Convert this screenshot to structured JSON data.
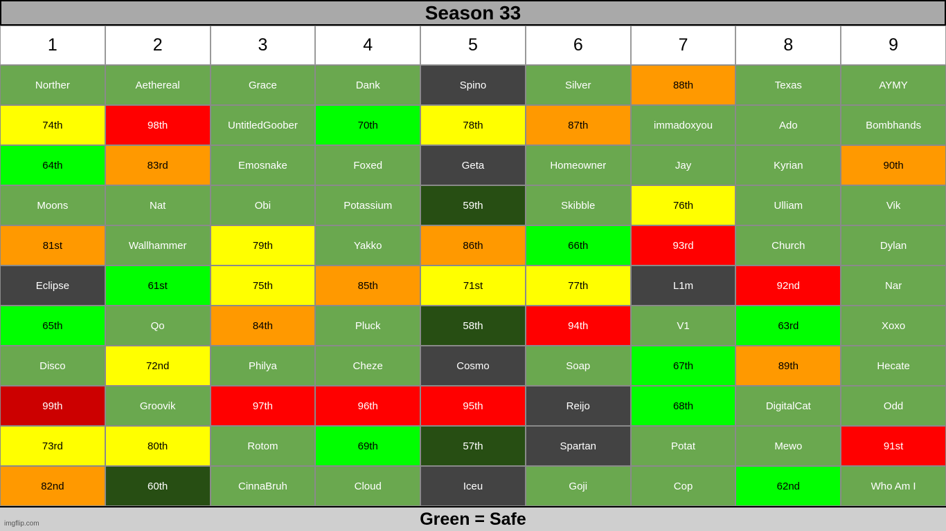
{
  "title": "Season 33",
  "footer": "Green = Safe",
  "watermark": "imgflip.com",
  "columns": [
    "1",
    "2",
    "3",
    "4",
    "5",
    "6",
    "7",
    "8",
    "9"
  ],
  "colors": {
    "G": {
      "bg": "#6aa84f",
      "fg": "#ffffff"
    },
    "D": {
      "bg": "#434343",
      "fg": "#ffffff"
    },
    "F": {
      "bg": "#274e13",
      "fg": "#ffffff"
    },
    "Y": {
      "bg": "#ffff00",
      "fg": "#000000"
    },
    "O": {
      "bg": "#ff9900",
      "fg": "#000000"
    },
    "R": {
      "bg": "#ff0000",
      "fg": "#ffffff"
    },
    "C": {
      "bg": "#cc0000",
      "fg": "#ffffff"
    },
    "L": {
      "bg": "#00ff00",
      "fg": "#000000"
    }
  },
  "rows": [
    [
      [
        "Norther",
        "G"
      ],
      [
        "Aethereal",
        "G"
      ],
      [
        "Grace",
        "G"
      ],
      [
        "Dank",
        "G"
      ],
      [
        "Spino",
        "D"
      ],
      [
        "Silver",
        "G"
      ],
      [
        "88th",
        "O"
      ],
      [
        "Texas",
        "G"
      ],
      [
        "AYMY",
        "G"
      ]
    ],
    [
      [
        "74th",
        "Y"
      ],
      [
        "98th",
        "R"
      ],
      [
        "UntitledGoober",
        "G"
      ],
      [
        "70th",
        "L"
      ],
      [
        "78th",
        "Y"
      ],
      [
        "87th",
        "O"
      ],
      [
        "immadoxyou",
        "G"
      ],
      [
        "Ado",
        "G"
      ],
      [
        "Bombhands",
        "G"
      ]
    ],
    [
      [
        "64th",
        "L"
      ],
      [
        "83rd",
        "O"
      ],
      [
        "Emosnake",
        "G"
      ],
      [
        "Foxed",
        "G"
      ],
      [
        "Geta",
        "D"
      ],
      [
        "Homeowner",
        "G"
      ],
      [
        "Jay",
        "G"
      ],
      [
        "Kyrian",
        "G"
      ],
      [
        "90th",
        "O"
      ]
    ],
    [
      [
        "Moons",
        "G"
      ],
      [
        "Nat",
        "G"
      ],
      [
        "Obi",
        "G"
      ],
      [
        "Potassium",
        "G"
      ],
      [
        "59th",
        "F"
      ],
      [
        "Skibble",
        "G"
      ],
      [
        "76th",
        "Y"
      ],
      [
        "Ulliam",
        "G"
      ],
      [
        "Vik",
        "G"
      ]
    ],
    [
      [
        "81st",
        "O"
      ],
      [
        "Wallhammer",
        "G"
      ],
      [
        "79th",
        "Y"
      ],
      [
        "Yakko",
        "G"
      ],
      [
        "86th",
        "O"
      ],
      [
        "66th",
        "L"
      ],
      [
        "93rd",
        "R"
      ],
      [
        "Church",
        "G"
      ],
      [
        "Dylan",
        "G"
      ]
    ],
    [
      [
        "Eclipse",
        "D"
      ],
      [
        "61st",
        "L"
      ],
      [
        "75th",
        "Y"
      ],
      [
        "85th",
        "O"
      ],
      [
        "71st",
        "Y"
      ],
      [
        "77th",
        "Y"
      ],
      [
        "L1m",
        "D"
      ],
      [
        "92nd",
        "R"
      ],
      [
        "Nar",
        "G"
      ]
    ],
    [
      [
        "65th",
        "L"
      ],
      [
        "Qo",
        "G"
      ],
      [
        "84th",
        "O"
      ],
      [
        "Pluck",
        "G"
      ],
      [
        "58th",
        "F"
      ],
      [
        "94th",
        "R"
      ],
      [
        "V1",
        "G"
      ],
      [
        "63rd",
        "L"
      ],
      [
        "Xoxo",
        "G"
      ]
    ],
    [
      [
        "Disco",
        "G"
      ],
      [
        "72nd",
        "Y"
      ],
      [
        "Philya",
        "G"
      ],
      [
        "Cheze",
        "G"
      ],
      [
        "Cosmo",
        "D"
      ],
      [
        "Soap",
        "G"
      ],
      [
        "67th",
        "L"
      ],
      [
        "89th",
        "O"
      ],
      [
        "Hecate",
        "G"
      ]
    ],
    [
      [
        "99th",
        "C"
      ],
      [
        "Groovik",
        "G"
      ],
      [
        "97th",
        "R"
      ],
      [
        "96th",
        "R"
      ],
      [
        "95th",
        "R"
      ],
      [
        "Reijo",
        "D"
      ],
      [
        "68th",
        "L"
      ],
      [
        "DigitalCat",
        "G"
      ],
      [
        "Odd",
        "G"
      ]
    ],
    [
      [
        "73rd",
        "Y"
      ],
      [
        "80th",
        "Y"
      ],
      [
        "Rotom",
        "G"
      ],
      [
        "69th",
        "L"
      ],
      [
        "57th",
        "F"
      ],
      [
        "Spartan",
        "D"
      ],
      [
        "Potat",
        "G"
      ],
      [
        "Mewo",
        "G"
      ],
      [
        "91st",
        "R"
      ]
    ],
    [
      [
        "82nd",
        "O"
      ],
      [
        "60th",
        "F"
      ],
      [
        "CinnaBruh",
        "G"
      ],
      [
        "Cloud",
        "G"
      ],
      [
        "Iceu",
        "D"
      ],
      [
        "Goji",
        "G"
      ],
      [
        "Cop",
        "G"
      ],
      [
        "62nd",
        "L"
      ],
      [
        "Who Am I",
        "G"
      ]
    ]
  ]
}
